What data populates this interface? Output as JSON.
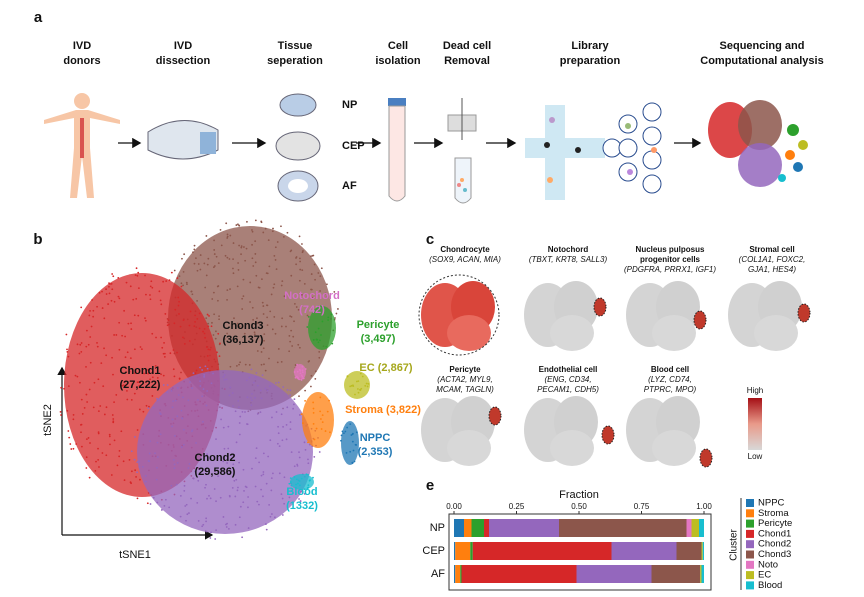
{
  "panel_a": {
    "label": "a",
    "steps": [
      {
        "lines": [
          "IVD",
          "donors"
        ]
      },
      {
        "lines": [
          "IVD",
          "dissection"
        ]
      },
      {
        "lines": [
          "Tissue",
          "seperation"
        ]
      },
      {
        "lines": [
          "Cell",
          "isolation"
        ]
      },
      {
        "lines": [
          "Dead cell",
          "Removal"
        ]
      },
      {
        "lines": [
          "Library",
          "preparation"
        ]
      },
      {
        "lines": [
          "Sequencing and",
          "Computational analysis"
        ]
      }
    ],
    "tissues": [
      "NP",
      "CEP",
      "AF"
    ]
  },
  "panel_b": {
    "label": "b",
    "xlabel": "tSNE1",
    "ylabel": "tSNE2",
    "clusters": [
      {
        "name": "Chond3",
        "count": "(36,137)"
      },
      {
        "name": "Chond1",
        "count": "(27,222)"
      },
      {
        "name": "Chond2",
        "count": "(29,586)"
      },
      {
        "name": "Notochord",
        "count": "(742)"
      },
      {
        "name": "Pericyte",
        "count": "(3,497)"
      },
      {
        "name": "EC",
        "count": "(2,867)"
      },
      {
        "name": "Stroma",
        "count": "(3,822)"
      },
      {
        "name": "NPPC",
        "count": "(2,353)"
      },
      {
        "name": "Blood",
        "count": "(1332)"
      }
    ]
  },
  "panel_c": {
    "label": "c",
    "cells": [
      {
        "title": [
          "Chondrocyte"
        ],
        "genes": [
          "(SOX9, ACAN, MIA)"
        ]
      },
      {
        "title": [
          "Notochord"
        ],
        "genes": [
          "(TBXT, KRT8, SALL3)"
        ]
      },
      {
        "title": [
          "Nucleus pulposus",
          "progenitor cells"
        ],
        "genes": [
          "(PDGFRA, PRRX1, IGF1)"
        ]
      },
      {
        "title": [
          "Stromal cell"
        ],
        "genes": [
          "(COL1A1, FOXC2,",
          "GJA1, HES4)"
        ]
      },
      {
        "title": [
          "Pericyte"
        ],
        "genes": [
          "(ACTA2, MYL9,",
          "MCAM, TAGLN)"
        ]
      },
      {
        "title": [
          "Endothelial cell"
        ],
        "genes": [
          "(ENG, CD34,",
          "PECAM1, CDH5)"
        ]
      },
      {
        "title": [
          "Blood cell"
        ],
        "genes": [
          "(LYZ, CD74,",
          "PTPRC, MPO)"
        ]
      }
    ],
    "legend_high": "High",
    "legend_low": "Low"
  },
  "panel_e_label": "e",
  "chart_data": {
    "type": "stacked-bar-horizontal",
    "title": "Fraction",
    "legend_title": "Cluster",
    "categories": [
      "NP",
      "CEP",
      "AF"
    ],
    "xlim": [
      0,
      1
    ],
    "xticks": [
      {
        "value": 0,
        "label": "0.00"
      },
      0.25,
      {
        "value": 0.5,
        "label": "0.50"
      },
      0.75,
      {
        "value": 1,
        "label": "1.00"
      }
    ],
    "series": [
      {
        "name": "NPPC",
        "color": "#1f77b4",
        "values": [
          0.04,
          0.005,
          0.005
        ]
      },
      {
        "name": "Stroma",
        "color": "#ff7f0e",
        "values": [
          0.03,
          0.06,
          0.02
        ]
      },
      {
        "name": "Pericyte",
        "color": "#2ca02c",
        "values": [
          0.05,
          0.01,
          0.005
        ]
      },
      {
        "name": "Chond1",
        "color": "#d62728",
        "values": [
          0.02,
          0.555,
          0.46
        ]
      },
      {
        "name": "Chond2",
        "color": "#9467bd",
        "values": [
          0.28,
          0.26,
          0.3
        ]
      },
      {
        "name": "Chond3",
        "color": "#8c564b",
        "values": [
          0.51,
          0.1,
          0.195
        ]
      },
      {
        "name": "Noto",
        "color": "#e377c2",
        "values": [
          0.02,
          0,
          0
        ]
      },
      {
        "name": "EC",
        "color": "#bcbd22",
        "values": [
          0.03,
          0.005,
          0.005
        ]
      },
      {
        "name": "Blood",
        "color": "#17becf",
        "values": [
          0.02,
          0.005,
          0.01
        ]
      }
    ]
  }
}
